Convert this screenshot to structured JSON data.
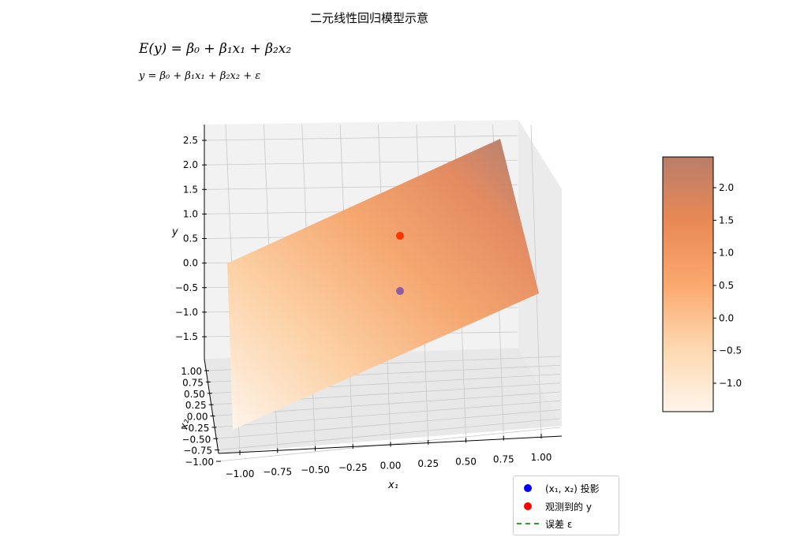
{
  "title": "二元线性回归模型示意",
  "equation_expected": "E(y) = β₀ + β₁x₁ + β₂x₂",
  "equation_model": "y = β₀ + β₁x₁ + β₂x₂ + ε",
  "chart_data": {
    "type": "surface3d",
    "colormap": "Oranges",
    "xlabel": "x₁",
    "ylabel": "x₂",
    "zlabel": "y",
    "x_ticks": [
      "−1.00",
      "−0.75",
      "−0.50",
      "−0.25",
      "0.00",
      "0.25",
      "0.50",
      "0.75",
      "1.00"
    ],
    "y_ticks": [
      "1.00",
      "0.75",
      "0.50",
      "0.25",
      "0.00",
      "−0.25",
      "−0.50",
      "−0.75",
      "−1.00"
    ],
    "z_ticks": [
      "2.5",
      "2.0",
      "1.5",
      "1.0",
      "0.5",
      "0.0",
      "−0.5",
      "−1.0",
      "−1.5"
    ],
    "xlim": [
      -1,
      1
    ],
    "ylim": [
      -1,
      1
    ],
    "zlim": [
      -1.9,
      2.9
    ],
    "plane": {
      "beta0": 0.5,
      "beta1": 1.0,
      "beta2": 1.0
    },
    "points": [
      {
        "name": "projection",
        "x1": 0.0,
        "x2": 0.0,
        "color": "#8e5ea2"
      },
      {
        "name": "observed",
        "x1": 0.0,
        "x2": 0.0,
        "y": 0.5,
        "color": "#ff3300"
      }
    ],
    "colorbar": {
      "ticks": [
        "2.0",
        "1.5",
        "1.0",
        "0.5",
        "0.0",
        "−0.5",
        "−1.0"
      ],
      "range": [
        -1.5,
        2.5
      ]
    },
    "legend": {
      "position": "bottom-right",
      "items": [
        {
          "label": "(x₁, x₂) 投影",
          "color": "#0000ff",
          "kind": "dot"
        },
        {
          "label": "观测到的 y",
          "color": "#ff0000",
          "kind": "dot"
        },
        {
          "label": "误差 ε",
          "color": "#2ca02c",
          "kind": "dash"
        }
      ]
    }
  }
}
